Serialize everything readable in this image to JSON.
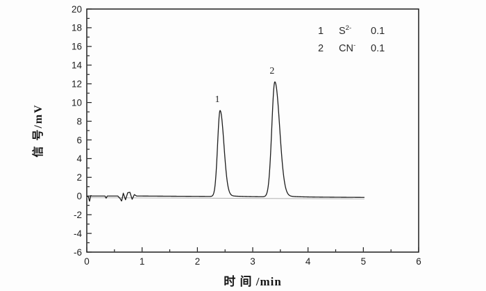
{
  "chart_data": {
    "type": "line",
    "title": "",
    "xlabel": "时 间 /min",
    "ylabel": "信 号/mV",
    "xlim": [
      0,
      6
    ],
    "ylim": [
      -6,
      20
    ],
    "x_ticks": [
      0,
      1,
      2,
      3,
      4,
      5,
      6
    ],
    "y_ticks": [
      -6,
      -4,
      -2,
      0,
      2,
      4,
      6,
      8,
      10,
      12,
      14,
      16,
      18,
      20
    ],
    "x_minor_step": 0.5,
    "y_minor_step": 1,
    "grid": false,
    "legend_position": "top-right-inside",
    "trace_start_min": 0,
    "trace_end_min": 5.02,
    "line_color": "#1c1c1c",
    "peaks": [
      {
        "label": "1",
        "ion": "S2-",
        "retention_time_min": 2.41,
        "height_mV": 9.2,
        "sigma_left": 0.045,
        "sigma_right": 0.068
      },
      {
        "label": "2",
        "ion": "CN-",
        "retention_time_min": 3.4,
        "height_mV": 12.3,
        "sigma_left": 0.055,
        "sigma_right": 0.085
      }
    ],
    "baseline_noise_anchors": [
      [
        0,
        0
      ],
      [
        0.03,
        -0.1
      ],
      [
        0.05,
        -0.6
      ],
      [
        0.07,
        0.05
      ],
      [
        0.09,
        0
      ],
      [
        0.33,
        0
      ],
      [
        0.35,
        -0.25
      ],
      [
        0.37,
        0
      ],
      [
        0.56,
        0
      ],
      [
        0.6,
        -0.25
      ],
      [
        0.63,
        -0.55
      ],
      [
        0.66,
        0.3
      ],
      [
        0.7,
        -0.4
      ],
      [
        0.74,
        0.35
      ],
      [
        0.78,
        0.4
      ],
      [
        0.82,
        -0.35
      ],
      [
        0.86,
        0.15
      ],
      [
        0.9,
        0
      ],
      [
        5.02,
        -0.15
      ]
    ]
  },
  "legend": {
    "rows": [
      {
        "num": "1",
        "ion_base": "S",
        "ion_sup": "2-",
        "conc": "0.1"
      },
      {
        "num": "2",
        "ion_base": "CN",
        "ion_sup": "-",
        "conc": "0.1"
      }
    ]
  },
  "axes": {
    "ylabel": "信 号/mV",
    "xlabel": "时 间 /min"
  },
  "peak_annotations": {
    "p1": "1",
    "p2": "2"
  }
}
